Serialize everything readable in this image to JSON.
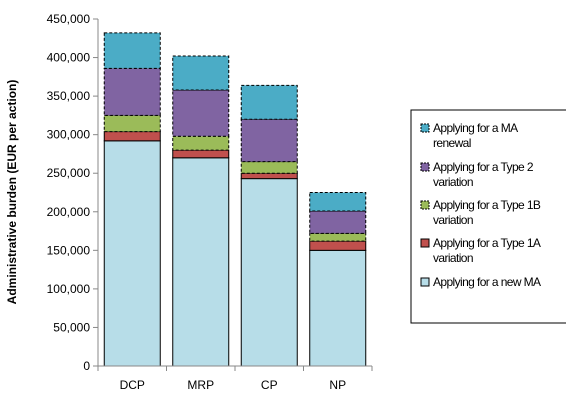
{
  "chart_data": {
    "type": "bar",
    "stacked": true,
    "categories": [
      "DCP",
      "MRP",
      "CP",
      "NP"
    ],
    "ylabel": "Administrative burden (EUR per action)",
    "xlabel": "",
    "ylim": [
      0,
      450000
    ],
    "yticks": [
      0,
      50000,
      100000,
      150000,
      200000,
      250000,
      300000,
      350000,
      400000,
      450000
    ],
    "ytick_labels": [
      "0",
      "50,000",
      "100,000",
      "150,000",
      "200,000",
      "250,000",
      "300,000",
      "350,000",
      "400,000",
      "450,000"
    ],
    "grid": false,
    "legend_position": "right",
    "series": [
      {
        "name": "Applying for a new MA",
        "color": "#b7dde8",
        "values": [
          292000,
          270000,
          243000,
          150000
        ]
      },
      {
        "name": "Applying for a Type 1A variation",
        "color": "#c0504d",
        "values": [
          12000,
          10000,
          7000,
          12000
        ]
      },
      {
        "name": "Applying for a Type 1B variation",
        "color": "#9bbb59",
        "values": [
          21000,
          18000,
          15000,
          10000
        ]
      },
      {
        "name": "Applying for a Type 2 variation",
        "color": "#8064a2",
        "values": [
          61000,
          60000,
          55000,
          29000
        ]
      },
      {
        "name": "Applying for a MA renewal",
        "color": "#4bacc6",
        "values": [
          46000,
          44000,
          44000,
          24000
        ]
      }
    ],
    "legend_labels": [
      [
        "Applying for a MA",
        "renewal"
      ],
      [
        "Applying for a Type 2",
        "variation"
      ],
      [
        "Applying for a Type 1B",
        "variation"
      ],
      [
        "Applying for a Type 1A",
        "variation"
      ],
      [
        "Applying for a new MA",
        ""
      ]
    ]
  }
}
